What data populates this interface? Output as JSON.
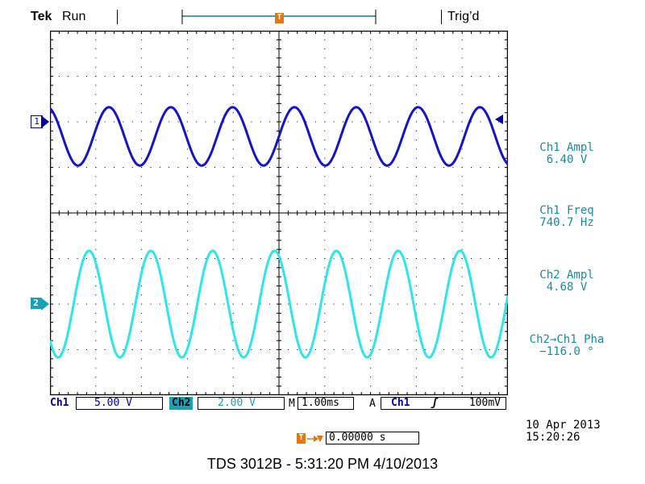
{
  "header": {
    "brand": "Tek",
    "run_state": "Run",
    "trigger_status": "Trig’d"
  },
  "markers": {
    "ch1": "1",
    "ch2": "2",
    "trigger_position": "T"
  },
  "measurements": [
    {
      "title": "Ch1 Ampl",
      "value": "6.40 V"
    },
    {
      "title": "Ch1 Freq",
      "value": "740.7 Hz"
    },
    {
      "title": "Ch2 Ampl",
      "value": "4.68 V"
    },
    {
      "title": "Ch2→Ch1 Pha",
      "value": "−116.0 °"
    }
  ],
  "status": {
    "ch1_label": "Ch1",
    "ch1_scale": "5.00 V",
    "ch2_label": "Ch2",
    "ch2_scale": "2.00 V",
    "timebase_prefix": "M",
    "timebase": "1.00ms",
    "trigger_mode": "A",
    "trigger_source": "Ch1",
    "trigger_slope": "ʃ",
    "trigger_level": "100mV",
    "trigger_offset_label": "T→▼",
    "trigger_offset": "0.00000 s"
  },
  "datetime": {
    "date": "10 Apr 2013",
    "time": "15:20:26"
  },
  "footer": "TDS 3012B - 5:31:20 PM    4/10/2013",
  "colors": {
    "ch1": "#1414c8",
    "ch2": "#2ee6ea",
    "measure_text": "#1c8a9e",
    "trigger_marker": "#e8740c",
    "grid": "#000000"
  },
  "waveforms": {
    "ch1": {
      "frequency_hz": 740.7,
      "amplitude_v": 6.4,
      "volts_per_div": 5.0
    },
    "ch2": {
      "amplitude_v": 4.68,
      "volts_per_div": 2.0,
      "phase_deg": -116.0
    },
    "time_per_div_ms": 1.0,
    "divisions_x": 10,
    "divisions_y": 8
  }
}
